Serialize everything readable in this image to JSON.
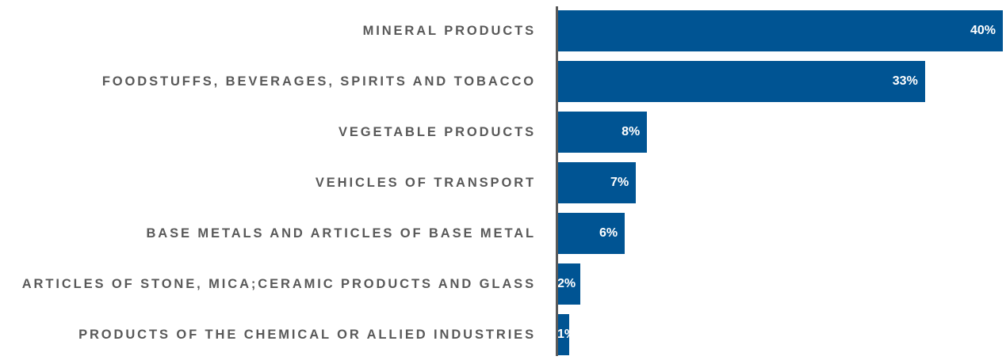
{
  "chart_data": {
    "type": "bar",
    "orientation": "horizontal",
    "categories": [
      "MINERAL PRODUCTS",
      "FOODSTUFFS, BEVERAGES, SPIRITS AND TOBACCO",
      "VEGETABLE PRODUCTS",
      "VEHICLES OF TRANSPORT",
      "BASE METALS AND ARTICLES OF BASE METAL",
      "ARTICLES OF STONE, MICA;CERAMIC PRODUCTS AND GLASS",
      "PRODUCTS OF THE CHEMICAL OR ALLIED INDUSTRIES"
    ],
    "values": [
      40,
      33,
      8,
      7,
      6,
      2,
      1
    ],
    "value_labels": [
      "40%",
      "33%",
      "8%",
      "7%",
      "6%",
      "2%",
      "1%"
    ],
    "color": "#005493"
  }
}
